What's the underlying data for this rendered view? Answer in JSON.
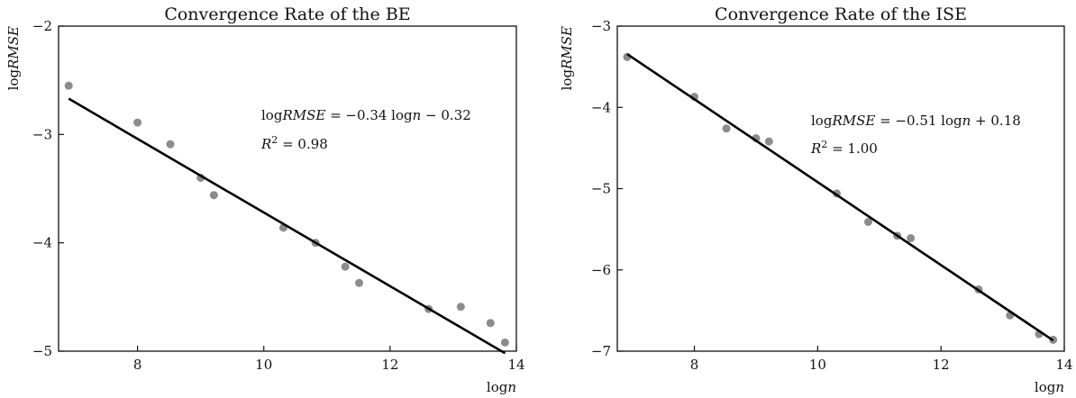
{
  "chart_data": [
    {
      "type": "scatter",
      "title": "Convergence Rate of the BE",
      "xlabel_prefix": "log",
      "xlabel_var": "n",
      "ylabel_prefix": "log",
      "ylabel_var": "RMSE",
      "xlim": [
        6.75,
        14.0
      ],
      "ylim": [
        -5,
        -2
      ],
      "xticks": [
        8,
        10,
        12,
        14
      ],
      "yticks": [
        -5,
        -4,
        -3,
        -2
      ],
      "grid": false,
      "series": [
        {
          "marker": "dot",
          "color": "#8c8c8c",
          "x": [
            6.91,
            8.0,
            8.52,
            9.0,
            9.21,
            10.31,
            10.82,
            11.29,
            11.51,
            12.61,
            13.12,
            13.59,
            13.82
          ],
          "y": [
            -2.55,
            -2.89,
            -3.09,
            -3.4,
            -3.56,
            -3.86,
            -4.0,
            -4.22,
            -4.37,
            -4.61,
            -4.59,
            -4.74,
            -4.92
          ]
        }
      ],
      "fit": {
        "slope": -0.34,
        "intercept": -0.32,
        "x_range": [
          6.91,
          13.82
        ],
        "color": "#000000",
        "equation_lhs": "log",
        "equation_lhs_var": "RMSE",
        "equation_rhs": " = −0.34 log",
        "equation_rhs_var": "n",
        "equation_tail": " − 0.32",
        "r2_label": "R",
        "r2_sup": "2",
        "r2_value": " = 0.98"
      }
    },
    {
      "type": "scatter",
      "title": "Convergence Rate of the ISE",
      "xlabel_prefix": "log",
      "xlabel_var": "n",
      "ylabel_prefix": "log",
      "ylabel_var": "RMSE",
      "xlim": [
        6.75,
        14.0
      ],
      "ylim": [
        -7,
        -3
      ],
      "xticks": [
        8,
        10,
        12,
        14
      ],
      "yticks": [
        -7,
        -6,
        -5,
        -4,
        -3
      ],
      "grid": false,
      "series": [
        {
          "marker": "dot",
          "color": "#8c8c8c",
          "x": [
            6.91,
            8.0,
            8.52,
            9.0,
            9.21,
            10.31,
            10.82,
            11.29,
            11.51,
            12.61,
            13.12,
            13.59,
            13.82
          ],
          "y": [
            -3.38,
            -3.87,
            -4.26,
            -4.38,
            -4.42,
            -5.06,
            -5.41,
            -5.58,
            -5.61,
            -6.24,
            -6.56,
            -6.79,
            -6.86
          ]
        }
      ],
      "fit": {
        "slope": -0.51,
        "intercept": 0.18,
        "x_range": [
          6.91,
          13.82
        ],
        "color": "#000000",
        "equation_lhs": "log",
        "equation_lhs_var": "RMSE",
        "equation_rhs": " = −0.51 log",
        "equation_rhs_var": "n",
        "equation_tail": " + 0.18",
        "r2_label": "R",
        "r2_sup": "2",
        "r2_value": " = 1.00"
      }
    }
  ]
}
